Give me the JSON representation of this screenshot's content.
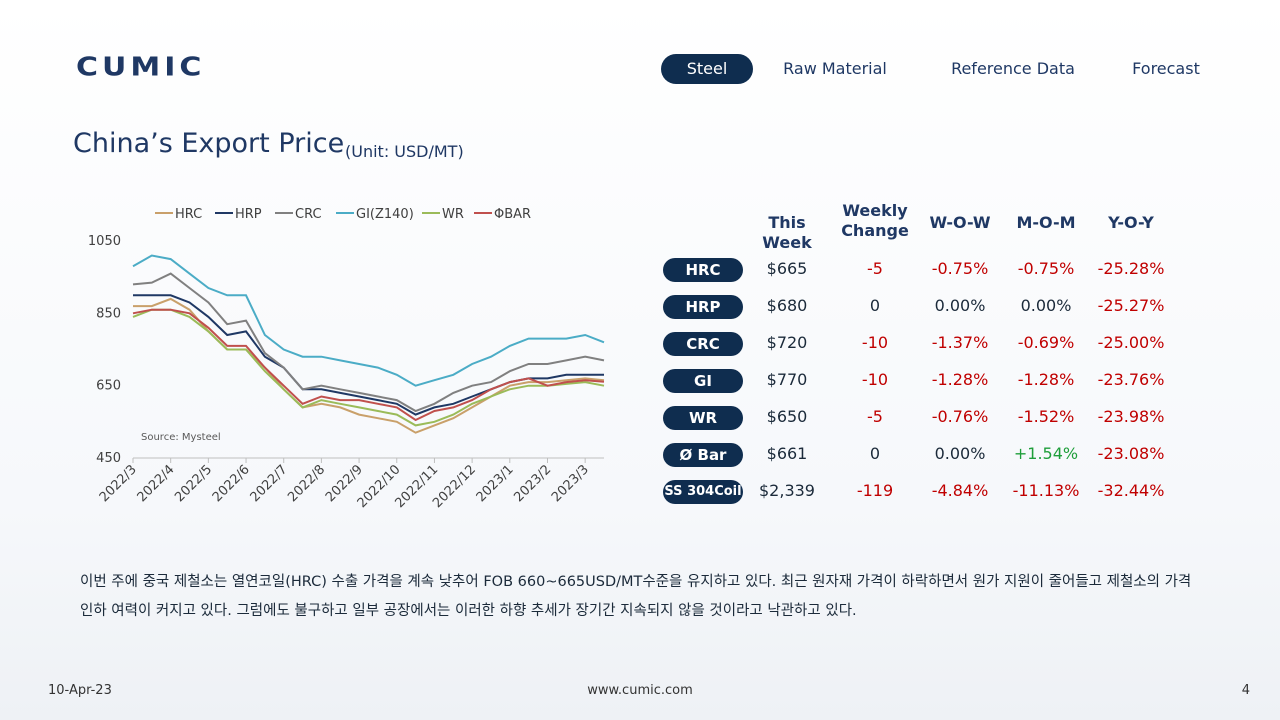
{
  "header": {
    "logo": "CUMIC",
    "nav": [
      {
        "label": "Steel",
        "active": true
      },
      {
        "label": "Raw Material",
        "active": false
      },
      {
        "label": "Reference Data",
        "active": false
      },
      {
        "label": "Forecast",
        "active": false
      }
    ]
  },
  "title": "China’s Export Price",
  "unit": "(Unit: USD/MT)",
  "chart_data": {
    "type": "line",
    "categories": [
      "2022/3",
      null,
      "2022/4",
      null,
      "2022/5",
      null,
      "2022/6",
      null,
      "2022/7",
      null,
      "2022/8",
      null,
      "2022/9",
      null,
      "2022/10",
      null,
      "2022/11",
      null,
      "2022/12",
      null,
      "2023/1",
      null,
      "2023/2",
      null,
      "2023/3",
      null
    ],
    "series": [
      {
        "name": "HRC",
        "color": "#c9a06a",
        "values": [
          870,
          870,
          890,
          860,
          800,
          750,
          750,
          700,
          640,
          590,
          600,
          590,
          570,
          560,
          550,
          520,
          540,
          560,
          590,
          620,
          650,
          660,
          660,
          665,
          670,
          665
        ]
      },
      {
        "name": "HRP",
        "color": "#1f3864",
        "values": [
          900,
          900,
          900,
          880,
          840,
          790,
          800,
          730,
          700,
          640,
          640,
          630,
          620,
          610,
          600,
          570,
          590,
          600,
          620,
          640,
          660,
          670,
          670,
          680,
          680,
          680
        ]
      },
      {
        "name": "CRC",
        "color": "#808080",
        "values": [
          930,
          935,
          960,
          920,
          880,
          820,
          830,
          740,
          700,
          640,
          650,
          640,
          630,
          620,
          610,
          580,
          600,
          630,
          650,
          660,
          690,
          710,
          710,
          720,
          730,
          720
        ]
      },
      {
        "name": "GI(Z140)",
        "color": "#4bacc6",
        "values": [
          980,
          1010,
          1000,
          960,
          920,
          900,
          900,
          790,
          750,
          730,
          730,
          720,
          710,
          700,
          680,
          650,
          665,
          680,
          710,
          730,
          760,
          780,
          780,
          780,
          790,
          770
        ]
      },
      {
        "name": "WR",
        "color": "#9bbb59",
        "values": [
          840,
          860,
          860,
          840,
          800,
          750,
          750,
          690,
          640,
          590,
          610,
          600,
          590,
          580,
          570,
          540,
          550,
          570,
          600,
          620,
          640,
          650,
          650,
          655,
          660,
          650
        ]
      },
      {
        "name": "ΦBAR",
        "color": "#c0504d",
        "values": [
          850,
          860,
          860,
          850,
          810,
          760,
          760,
          700,
          650,
          600,
          620,
          610,
          610,
          600,
          590,
          555,
          580,
          590,
          610,
          640,
          660,
          670,
          650,
          660,
          665,
          661
        ]
      }
    ],
    "ylim": [
      450,
      1050
    ],
    "yticks": [
      450,
      650,
      850,
      1050
    ],
    "grid": false,
    "legend": "top",
    "source": "Source: Mysteel"
  },
  "table": {
    "columns": [
      "This Week",
      "Weekly Change",
      "W-O-W",
      "M-O-M",
      "Y-O-Y"
    ],
    "rows": [
      [
        "HRC",
        "$665",
        "-5",
        "-0.75%",
        "-0.75%",
        "-25.28%"
      ],
      [
        "HRP",
        "$680",
        "0",
        "0.00%",
        "0.00%",
        "-25.27%"
      ],
      [
        "CRC",
        "$720",
        "-10",
        "-1.37%",
        "-0.69%",
        "-25.00%"
      ],
      [
        "GI",
        "$770",
        "-10",
        "-1.28%",
        "-1.28%",
        "-23.76%"
      ],
      [
        "WR",
        "$650",
        "-5",
        "-0.76%",
        "-1.52%",
        "-23.98%"
      ],
      [
        "Ø Bar",
        "$661",
        "0",
        "0.00%",
        "+1.54%",
        "-23.08%"
      ],
      [
        "SS 304Coil",
        "$2,339",
        "-119",
        "-4.84%",
        "-11.13%",
        "-32.44%"
      ]
    ]
  },
  "body": "이번 주에 중국 제철소는 열연코일(HRC) 수출 가격을 계속 낮추어 FOB 660~665USD/MT수준을 유지하고 있다. 최근 원자재 가격이 하락하면서 원가 지원이 줄어들고 제철소의 가격 인하 여력이 커지고 있다. 그럼에도 불구하고 일부 공장에서는 이러한 하향 추세가 장기간 지속되지 않을 것이라고 낙관하고 있다.",
  "footer": {
    "date": "10-Apr-23",
    "url": "www.cumic.com",
    "page": "4"
  }
}
